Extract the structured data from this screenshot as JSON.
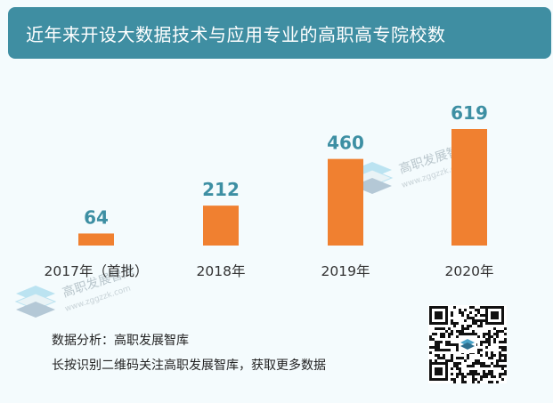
{
  "header": {
    "title": "近年来开设大数据技术与应用专业的高职高专院校数"
  },
  "chart_data": {
    "type": "bar",
    "categories": [
      "2017年（首批）",
      "2018年",
      "2019年",
      "2020年"
    ],
    "values": [
      64,
      212,
      460,
      619
    ],
    "ylim": [
      0,
      619
    ],
    "bar_color": "#f08030",
    "label_color": "#3d8fa3"
  },
  "footer": {
    "line1": "数据分析：高职发展智库",
    "line2": "长按识别二维码关注高职发展智库，获取更多数据"
  },
  "watermark": {
    "name": "高职发展智库",
    "url": "www.zggzzk.com"
  }
}
